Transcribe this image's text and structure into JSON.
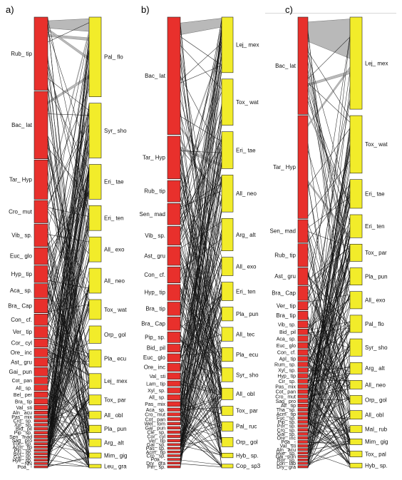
{
  "colors": {
    "left": "#e8302c",
    "right": "#f2ec2a",
    "bar_stroke": "#222222",
    "link": "#111111",
    "wedge_fill": "#b9b9b9"
  },
  "panels": [
    {
      "label": "a)",
      "left_nodes": [
        {
          "name": "Rub_ tip",
          "weight": 13
        },
        {
          "name": "Bac_ lat",
          "weight": 12
        },
        {
          "name": "Tar_ Hyp",
          "weight": 7
        },
        {
          "name": "Cro_ mut",
          "weight": 4
        },
        {
          "name": "Vib_ sp.",
          "weight": 4
        },
        {
          "name": "Euc_ glo",
          "weight": 3
        },
        {
          "name": "Hyp_ tip",
          "weight": 3
        },
        {
          "name": "Aca_ sp.",
          "weight": 2.5
        },
        {
          "name": "Bra_ Cap",
          "weight": 2.5
        },
        {
          "name": "Con_ cf.",
          "weight": 2
        },
        {
          "name": "Ver_ tip",
          "weight": 2
        },
        {
          "name": "Cor_ cyl",
          "weight": 1.5
        },
        {
          "name": "Ore_ inc",
          "weight": 1.5
        },
        {
          "name": "Ast_ gru",
          "weight": 1.5
        },
        {
          "name": "Gai_ pun",
          "weight": 1.5
        },
        {
          "name": "Cot_ pan",
          "weight": 1.2
        },
        {
          "name": "All_ sp.",
          "weight": 1
        },
        {
          "name": "Bel_ per",
          "weight": 1
        },
        {
          "name": "Bra_ tip",
          "weight": 1
        },
        {
          "name": "Val_ sti",
          "weight": 0.8
        },
        {
          "name": "Aln_ acu",
          "weight": 0.6
        },
        {
          "name": "Pas_ mix",
          "weight": 0.5
        },
        {
          "name": "Cro_ sp.",
          "weight": 0.5
        },
        {
          "name": "Xyl_ sp.",
          "weight": 0.5
        },
        {
          "name": "Bid_ pil",
          "weight": 0.5
        },
        {
          "name": "Pip_ sp.",
          "weight": 0.5
        },
        {
          "name": "Sen_ mad",
          "weight": 0.5
        },
        {
          "name": "Sag_ pro",
          "weight": 0.4
        },
        {
          "name": "Fuc_ sp.",
          "weight": 0.4
        },
        {
          "name": "Acm_ tip",
          "weight": 0.4
        },
        {
          "name": "Pin_ sp.",
          "weight": 0.3
        },
        {
          "name": "Bor_ sp.",
          "weight": 0.3
        },
        {
          "name": "Gal_ sp.",
          "weight": 0.3
        },
        {
          "name": "Hye_ sp.",
          "weight": 0.3
        },
        {
          "name": "NN",
          "weight": 0.3
        },
        {
          "name": "Poa_ -",
          "weight": 0.3
        }
      ],
      "right_nodes": [
        {
          "name": "Pal_ flo",
          "weight": 16
        },
        {
          "name": "Syr_ sho",
          "weight": 11
        },
        {
          "name": "Eri_ tae",
          "weight": 7
        },
        {
          "name": "Eri_ ten",
          "weight": 5
        },
        {
          "name": "All_ exo",
          "weight": 5
        },
        {
          "name": "All_ neo",
          "weight": 5
        },
        {
          "name": "Tox_ wat",
          "weight": 4
        },
        {
          "name": "Orp_ gol",
          "weight": 3.5
        },
        {
          "name": "Pla_ ecu",
          "weight": 3.5
        },
        {
          "name": "Lej_ mex",
          "weight": 3
        },
        {
          "name": "Tox_ par",
          "weight": 2
        },
        {
          "name": "All_ obl",
          "weight": 1.5
        },
        {
          "name": "Pla_ pun",
          "weight": 1.5
        },
        {
          "name": "Arg_ alt",
          "weight": 1.5
        },
        {
          "name": "Mim_ gig",
          "weight": 1
        },
        {
          "name": "Leu_ gra",
          "weight": 0.7
        }
      ]
    },
    {
      "label": "b)",
      "left_nodes": [
        {
          "name": "Bac_ lat",
          "weight": 22
        },
        {
          "name": "Tar_ Hyp",
          "weight": 8
        },
        {
          "name": "Rub_ tip",
          "weight": 4
        },
        {
          "name": "Sen_ mad",
          "weight": 4
        },
        {
          "name": "Vib_ sp.",
          "weight": 3.5
        },
        {
          "name": "Ast_ gru",
          "weight": 3.5
        },
        {
          "name": "Con_ cf.",
          "weight": 3
        },
        {
          "name": "Hyp_ tip",
          "weight": 3
        },
        {
          "name": "Bra_ tip",
          "weight": 2.5
        },
        {
          "name": "Bra_ Cap",
          "weight": 2.5
        },
        {
          "name": "Pip_ sp.",
          "weight": 2
        },
        {
          "name": "Bid_ pil",
          "weight": 1.5
        },
        {
          "name": "Euc_ glo",
          "weight": 1.5
        },
        {
          "name": "Ore_ inc",
          "weight": 1.5
        },
        {
          "name": "Val_ sti",
          "weight": 1.2
        },
        {
          "name": "Lam_ tip",
          "weight": 1
        },
        {
          "name": "Xyl_ sp.",
          "weight": 1
        },
        {
          "name": "All_ sp.",
          "weight": 1
        },
        {
          "name": "Pas_ mix",
          "weight": 0.9
        },
        {
          "name": "Aca_ sp.",
          "weight": 0.6
        },
        {
          "name": "Cro_ mut",
          "weight": 0.6
        },
        {
          "name": "Cot_ pan",
          "weight": 0.6
        },
        {
          "name": "Wel_ tom",
          "weight": 0.5
        },
        {
          "name": "Gai_ pun",
          "weight": 0.5
        },
        {
          "name": "Cle_ sp.",
          "weight": 0.5
        },
        {
          "name": "Cor_ cyl",
          "weight": 0.5
        },
        {
          "name": "Ver_ tip",
          "weight": 0.5
        },
        {
          "name": "Gal_ sp.",
          "weight": 0.4
        },
        {
          "name": "Pas_ sp.",
          "weight": 0.4
        },
        {
          "name": "Acm_ tip",
          "weight": 0.4
        },
        {
          "name": "Cro_ sp.",
          "weight": 0.4
        },
        {
          "name": "Poa_ -",
          "weight": 0.4
        },
        {
          "name": "Dry_ gra",
          "weight": 0.3
        },
        {
          "name": "Pin_ sp.",
          "weight": 0.3
        }
      ],
      "right_nodes": [
        {
          "name": "Lej_ mex",
          "weight": 12
        },
        {
          "name": "Tox_ wat",
          "weight": 10
        },
        {
          "name": "Eri_ tae",
          "weight": 8
        },
        {
          "name": "All_ neo",
          "weight": 8
        },
        {
          "name": "Arg_ alt",
          "weight": 7
        },
        {
          "name": "All_ exo",
          "weight": 4
        },
        {
          "name": "Eri_ ten",
          "weight": 4
        },
        {
          "name": "Pla_ pun",
          "weight": 3
        },
        {
          "name": "All_ tec",
          "weight": 3
        },
        {
          "name": "Pla_ ecu",
          "weight": 3
        },
        {
          "name": "Syr_ sho",
          "weight": 3
        },
        {
          "name": "All_ obl",
          "weight": 2.5
        },
        {
          "name": "Tox_ par",
          "weight": 2
        },
        {
          "name": "Pal_ ruc",
          "weight": 2
        },
        {
          "name": "Orp_ gol",
          "weight": 2
        },
        {
          "name": "Hyb_ sp.",
          "weight": 1
        },
        {
          "name": "Cop_ sp3",
          "weight": 0.8
        }
      ]
    },
    {
      "label": "c)",
      "left_nodes": [
        {
          "name": "Bac_ lat",
          "weight": 17
        },
        {
          "name": "Tar_ Hyp",
          "weight": 18
        },
        {
          "name": "Sen_ mad",
          "weight": 4
        },
        {
          "name": "Rub_ tip",
          "weight": 4
        },
        {
          "name": "Ast_ gru",
          "weight": 3
        },
        {
          "name": "Bra_ Cap",
          "weight": 2.5
        },
        {
          "name": "Ver_ tip",
          "weight": 1.5
        },
        {
          "name": "Bra_ tip",
          "weight": 1.5
        },
        {
          "name": "Vib_ sp.",
          "weight": 1.2
        },
        {
          "name": "Bid_ pil",
          "weight": 1
        },
        {
          "name": "Aca_ sp.",
          "weight": 1
        },
        {
          "name": "Euc_ glo",
          "weight": 1
        },
        {
          "name": "Con_ cf.",
          "weight": 1
        },
        {
          "name": "Apl_ tip",
          "weight": 0.8
        },
        {
          "name": "Rum_ sp.",
          "weight": 0.8
        },
        {
          "name": "Xyl_ sp.",
          "weight": 0.8
        },
        {
          "name": "Hyp_ tip",
          "weight": 0.8
        },
        {
          "name": "Cir_ sp.",
          "weight": 0.7
        },
        {
          "name": "Pas_ mix",
          "weight": 0.7
        },
        {
          "name": "Cot_ pan",
          "weight": 0.7
        },
        {
          "name": "Cro_ mut",
          "weight": 0.6
        },
        {
          "name": "Sag_ pro",
          "weight": 0.6
        },
        {
          "name": "All_ tip",
          "weight": 0.6
        },
        {
          "name": "Tha_ sp.",
          "weight": 0.5
        },
        {
          "name": "Acm_ tip",
          "weight": 0.5
        },
        {
          "name": "Fuc_ sp.",
          "weight": 0.5
        },
        {
          "name": "Pip_ sp.",
          "weight": 0.5
        },
        {
          "name": "Por_ sp.",
          "weight": 0.5
        },
        {
          "name": "Cro_ sp.",
          "weight": 0.5
        },
        {
          "name": "Gal_ sp.",
          "weight": 0.5
        },
        {
          "name": "Ore_ inc",
          "weight": 0.5
        },
        {
          "name": "Poa_ -",
          "weight": 0.5
        },
        {
          "name": "Val_ sti",
          "weight": 0.5
        },
        {
          "name": "Aln_ acu",
          "weight": 0.4
        },
        {
          "name": "Hye_ sp.",
          "weight": 0.4
        },
        {
          "name": "Gai_ pun",
          "weight": 0.4
        },
        {
          "name": "Bor_ sp.",
          "weight": 0.4
        },
        {
          "name": "Lon_ lab",
          "weight": 0.4
        },
        {
          "name": "Dry_ gra",
          "weight": 0.4
        }
      ],
      "right_nodes": [
        {
          "name": "Lej_ mex",
          "weight": 16
        },
        {
          "name": "Tox_ wat",
          "weight": 10
        },
        {
          "name": "Eri_ tae",
          "weight": 5
        },
        {
          "name": "Eri_ ten",
          "weight": 4
        },
        {
          "name": "Tox_ par",
          "weight": 3
        },
        {
          "name": "Pla_ pun",
          "weight": 3
        },
        {
          "name": "All_ exo",
          "weight": 3
        },
        {
          "name": "Pal_ flo",
          "weight": 3
        },
        {
          "name": "Syr_ sho",
          "weight": 3
        },
        {
          "name": "Arg_ alt",
          "weight": 2
        },
        {
          "name": "All_ neo",
          "weight": 1.5
        },
        {
          "name": "Orp_ gol",
          "weight": 1.5
        },
        {
          "name": "All_ obl",
          "weight": 1.5
        },
        {
          "name": "Mal_ rub",
          "weight": 1.2
        },
        {
          "name": "Mim_ gig",
          "weight": 1
        },
        {
          "name": "Tox_ pal",
          "weight": 1
        },
        {
          "name": "Hyb_ sp.",
          "weight": 0.8
        }
      ]
    }
  ]
}
